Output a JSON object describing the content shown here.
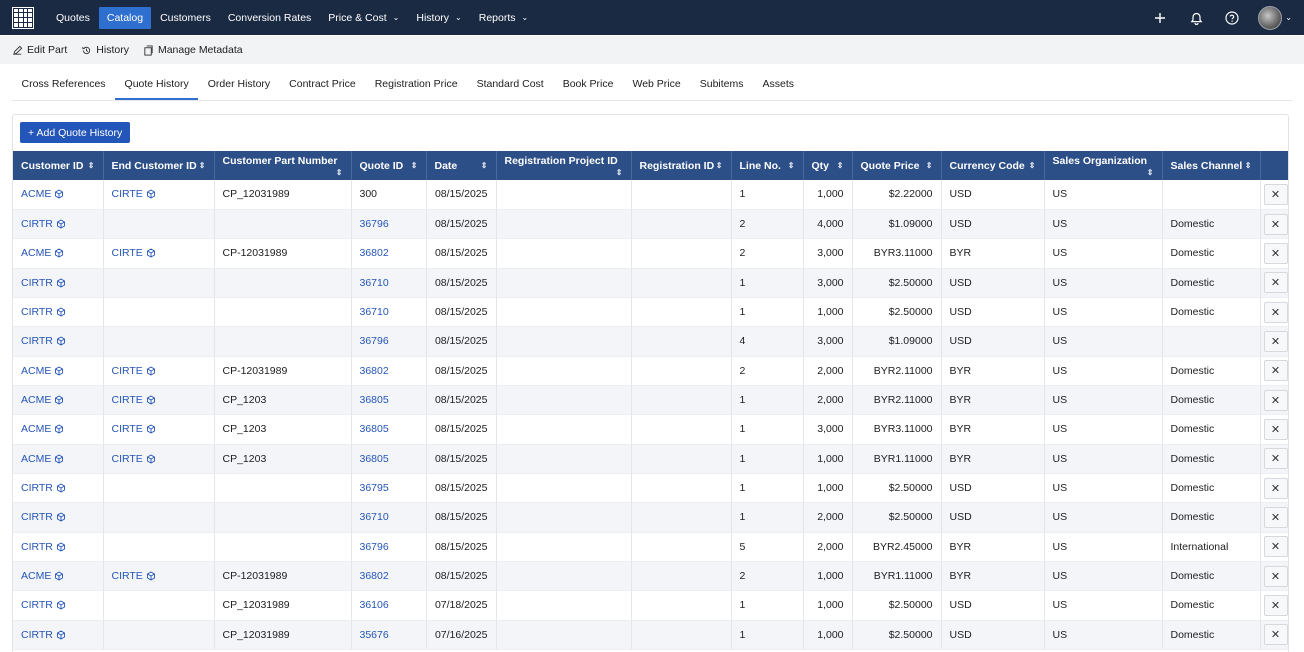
{
  "nav": {
    "items": [
      {
        "label": "Quotes",
        "dropdown": false,
        "active": false
      },
      {
        "label": "Catalog",
        "dropdown": false,
        "active": true
      },
      {
        "label": "Customers",
        "dropdown": false,
        "active": false
      },
      {
        "label": "Conversion Rates",
        "dropdown": false,
        "active": false
      },
      {
        "label": "Price & Cost",
        "dropdown": true,
        "active": false
      },
      {
        "label": "History",
        "dropdown": true,
        "active": false
      },
      {
        "label": "Reports",
        "dropdown": true,
        "active": false
      }
    ],
    "right_icons": [
      "plus-icon",
      "bell-icon",
      "help-icon"
    ]
  },
  "actions": {
    "edit_part": "Edit Part",
    "history": "History",
    "manage_metadata": "Manage Metadata"
  },
  "tabs": [
    {
      "label": "Cross References",
      "active": false
    },
    {
      "label": "Quote History",
      "active": true
    },
    {
      "label": "Order History",
      "active": false
    },
    {
      "label": "Contract Price",
      "active": false
    },
    {
      "label": "Registration Price",
      "active": false
    },
    {
      "label": "Standard Cost",
      "active": false
    },
    {
      "label": "Book Price",
      "active": false
    },
    {
      "label": "Web Price",
      "active": false
    },
    {
      "label": "Subitems",
      "active": false
    },
    {
      "label": "Assets",
      "active": false
    }
  ],
  "add_button": "+ Add Quote History",
  "table": {
    "columns": [
      "Customer ID",
      "End Customer ID",
      "Customer Part Number",
      "Quote ID",
      "Date",
      "Registration Project ID",
      "Registration ID",
      "Line No.",
      "Qty",
      "Quote Price",
      "Currency Code",
      "Sales Organization",
      "Sales Channel"
    ],
    "rows": [
      {
        "customer": "ACME",
        "end_customer": "CIRTE",
        "part": "CP_12031989",
        "quote_id": "300",
        "quote_link": false,
        "date": "08/15/2025",
        "reg_project": "",
        "reg_id": "",
        "line": "1",
        "qty": "1,000",
        "price": "$2.22000",
        "currency": "USD",
        "org": "US",
        "channel": ""
      },
      {
        "customer": "CIRTR",
        "end_customer": "",
        "part": "",
        "quote_id": "36796",
        "quote_link": true,
        "date": "08/15/2025",
        "reg_project": "",
        "reg_id": "",
        "line": "2",
        "qty": "4,000",
        "price": "$1.09000",
        "currency": "USD",
        "org": "US",
        "channel": "Domestic"
      },
      {
        "customer": "ACME",
        "end_customer": "CIRTE",
        "part": "CP-12031989",
        "quote_id": "36802",
        "quote_link": true,
        "date": "08/15/2025",
        "reg_project": "",
        "reg_id": "",
        "line": "2",
        "qty": "3,000",
        "price": "BYR3.11000",
        "currency": "BYR",
        "org": "US",
        "channel": "Domestic"
      },
      {
        "customer": "CIRTR",
        "end_customer": "",
        "part": "",
        "quote_id": "36710",
        "quote_link": true,
        "date": "08/15/2025",
        "reg_project": "",
        "reg_id": "",
        "line": "1",
        "qty": "3,000",
        "price": "$2.50000",
        "currency": "USD",
        "org": "US",
        "channel": "Domestic"
      },
      {
        "customer": "CIRTR",
        "end_customer": "",
        "part": "",
        "quote_id": "36710",
        "quote_link": true,
        "date": "08/15/2025",
        "reg_project": "",
        "reg_id": "",
        "line": "1",
        "qty": "1,000",
        "price": "$2.50000",
        "currency": "USD",
        "org": "US",
        "channel": "Domestic"
      },
      {
        "customer": "CIRTR",
        "end_customer": "",
        "part": "",
        "quote_id": "36796",
        "quote_link": true,
        "date": "08/15/2025",
        "reg_project": "",
        "reg_id": "",
        "line": "4",
        "qty": "3,000",
        "price": "$1.09000",
        "currency": "USD",
        "org": "US",
        "channel": ""
      },
      {
        "customer": "ACME",
        "end_customer": "CIRTE",
        "part": "CP-12031989",
        "quote_id": "36802",
        "quote_link": true,
        "date": "08/15/2025",
        "reg_project": "",
        "reg_id": "",
        "line": "2",
        "qty": "2,000",
        "price": "BYR2.11000",
        "currency": "BYR",
        "org": "US",
        "channel": "Domestic"
      },
      {
        "customer": "ACME",
        "end_customer": "CIRTE",
        "part": "CP_1203",
        "quote_id": "36805",
        "quote_link": true,
        "date": "08/15/2025",
        "reg_project": "",
        "reg_id": "",
        "line": "1",
        "qty": "2,000",
        "price": "BYR2.11000",
        "currency": "BYR",
        "org": "US",
        "channel": "Domestic"
      },
      {
        "customer": "ACME",
        "end_customer": "CIRTE",
        "part": "CP_1203",
        "quote_id": "36805",
        "quote_link": true,
        "date": "08/15/2025",
        "reg_project": "",
        "reg_id": "",
        "line": "1",
        "qty": "3,000",
        "price": "BYR3.11000",
        "currency": "BYR",
        "org": "US",
        "channel": "Domestic"
      },
      {
        "customer": "ACME",
        "end_customer": "CIRTE",
        "part": "CP_1203",
        "quote_id": "36805",
        "quote_link": true,
        "date": "08/15/2025",
        "reg_project": "",
        "reg_id": "",
        "line": "1",
        "qty": "1,000",
        "price": "BYR1.11000",
        "currency": "BYR",
        "org": "US",
        "channel": "Domestic"
      },
      {
        "customer": "CIRTR",
        "end_customer": "",
        "part": "",
        "quote_id": "36795",
        "quote_link": true,
        "date": "08/15/2025",
        "reg_project": "",
        "reg_id": "",
        "line": "1",
        "qty": "1,000",
        "price": "$2.50000",
        "currency": "USD",
        "org": "US",
        "channel": "Domestic"
      },
      {
        "customer": "CIRTR",
        "end_customer": "",
        "part": "",
        "quote_id": "36710",
        "quote_link": true,
        "date": "08/15/2025",
        "reg_project": "",
        "reg_id": "",
        "line": "1",
        "qty": "2,000",
        "price": "$2.50000",
        "currency": "USD",
        "org": "US",
        "channel": "Domestic"
      },
      {
        "customer": "CIRTR",
        "end_customer": "",
        "part": "",
        "quote_id": "36796",
        "quote_link": true,
        "date": "08/15/2025",
        "reg_project": "",
        "reg_id": "",
        "line": "5",
        "qty": "2,000",
        "price": "BYR2.45000",
        "currency": "BYR",
        "org": "US",
        "channel": "International"
      },
      {
        "customer": "ACME",
        "end_customer": "CIRTE",
        "part": "CP-12031989",
        "quote_id": "36802",
        "quote_link": true,
        "date": "08/15/2025",
        "reg_project": "",
        "reg_id": "",
        "line": "2",
        "qty": "1,000",
        "price": "BYR1.11000",
        "currency": "BYR",
        "org": "US",
        "channel": "Domestic"
      },
      {
        "customer": "CIRTR",
        "end_customer": "",
        "part": "CP_12031989",
        "quote_id": "36106",
        "quote_link": true,
        "date": "07/18/2025",
        "reg_project": "",
        "reg_id": "",
        "line": "1",
        "qty": "1,000",
        "price": "$2.50000",
        "currency": "USD",
        "org": "US",
        "channel": "Domestic"
      },
      {
        "customer": "CIRTR",
        "end_customer": "",
        "part": "CP_12031989",
        "quote_id": "35676",
        "quote_link": true,
        "date": "07/16/2025",
        "reg_project": "",
        "reg_id": "",
        "line": "1",
        "qty": "1,000",
        "price": "$2.50000",
        "currency": "USD",
        "org": "US",
        "channel": "Domestic"
      }
    ]
  },
  "icons": {
    "customer_link": "cube-icon",
    "delete": "close-icon"
  },
  "colors": {
    "nav_bg": "#1b2a43",
    "accent": "#2f6fcf",
    "header_bg": "#2d4f87",
    "link": "#2455b8"
  }
}
